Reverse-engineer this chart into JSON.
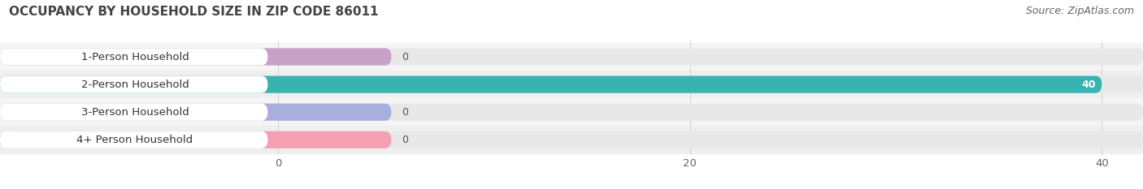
{
  "title": "OCCUPANCY BY HOUSEHOLD SIZE IN ZIP CODE 86011",
  "source": "Source: ZipAtlas.com",
  "categories": [
    "1-Person Household",
    "2-Person Household",
    "3-Person Household",
    "4+ Person Household"
  ],
  "values": [
    0,
    40,
    0,
    0
  ],
  "bar_colors": [
    "#c9a0c8",
    "#39b2b2",
    "#a8aedd",
    "#f5a0b5"
  ],
  "xlim_max": 42,
  "xticks": [
    0,
    20,
    40
  ],
  "bar_height": 0.62,
  "title_fontsize": 11,
  "label_fontsize": 9.5,
  "value_fontsize": 9,
  "source_fontsize": 9,
  "bg_color": "#ffffff",
  "track_color": "#e8e8e8",
  "row_alt_color": "#f0f0f0",
  "label_bg_color": "#ffffff",
  "zero_bar_width": 5.5
}
